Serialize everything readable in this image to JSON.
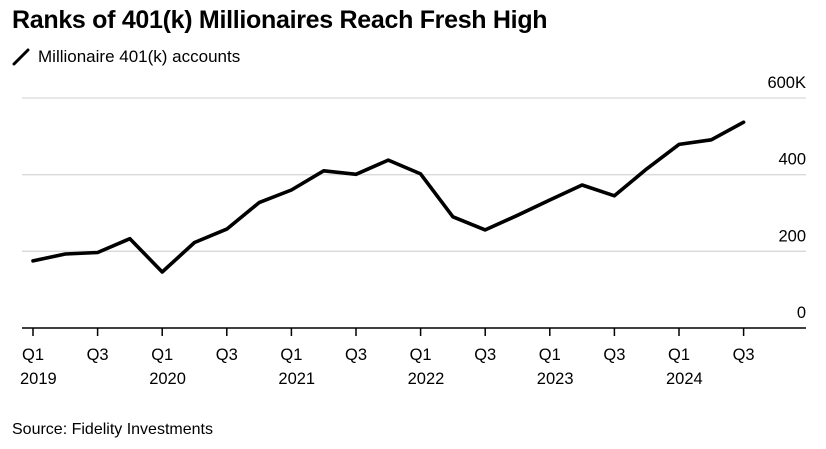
{
  "title": "Ranks of 401(k) Millionaires Reach Fresh High",
  "source": "Source: Fidelity Investments",
  "colors": {
    "line": "#000000",
    "grid": "#d9d9d9",
    "axis": "#000000",
    "background": "#ffffff"
  },
  "legend": {
    "position": "top-left",
    "icon": "diagonal-line-icon"
  },
  "chart_data": {
    "type": "line",
    "title": "Ranks of 401(k) Millionaires Reach Fresh High",
    "xlabel": "",
    "ylabel": "",
    "grid": true,
    "y_axis_side": "right",
    "ylim": [
      0,
      600
    ],
    "y_ticks": [
      {
        "value": 0,
        "label": "0"
      },
      {
        "value": 200,
        "label": "200"
      },
      {
        "value": 400,
        "label": "400"
      },
      {
        "value": 600,
        "label": "600K"
      }
    ],
    "x_ticks": [
      {
        "index": 0,
        "quarter": "Q1",
        "year": "2019"
      },
      {
        "index": 2,
        "quarter": "Q3",
        "year": ""
      },
      {
        "index": 4,
        "quarter": "Q1",
        "year": "2020"
      },
      {
        "index": 6,
        "quarter": "Q3",
        "year": ""
      },
      {
        "index": 8,
        "quarter": "Q1",
        "year": "2021"
      },
      {
        "index": 10,
        "quarter": "Q3",
        "year": ""
      },
      {
        "index": 12,
        "quarter": "Q1",
        "year": "2022"
      },
      {
        "index": 14,
        "quarter": "Q3",
        "year": ""
      },
      {
        "index": 16,
        "quarter": "Q1",
        "year": "2023"
      },
      {
        "index": 18,
        "quarter": "Q3",
        "year": ""
      },
      {
        "index": 20,
        "quarter": "Q1",
        "year": "2024"
      },
      {
        "index": 22,
        "quarter": "Q3",
        "year": ""
      }
    ],
    "series": [
      {
        "name": "Millionaire 401(k) accounts",
        "x": [
          "Q1 2019",
          "Q2 2019",
          "Q3 2019",
          "Q4 2019",
          "Q1 2020",
          "Q2 2020",
          "Q3 2020",
          "Q4 2020",
          "Q1 2021",
          "Q2 2021",
          "Q3 2021",
          "Q4 2021",
          "Q1 2022",
          "Q2 2022",
          "Q3 2022",
          "Q4 2022",
          "Q1 2023",
          "Q2 2023",
          "Q3 2023",
          "Q4 2023",
          "Q1 2024",
          "Q2 2024",
          "Q3 2024"
        ],
        "values": [
          175,
          193,
          197,
          233,
          146,
          223,
          258,
          327,
          360,
          410,
          401,
          438,
          402,
          290,
          256,
          294,
          334,
          373,
          345,
          415,
          479,
          491,
          537
        ]
      }
    ]
  }
}
